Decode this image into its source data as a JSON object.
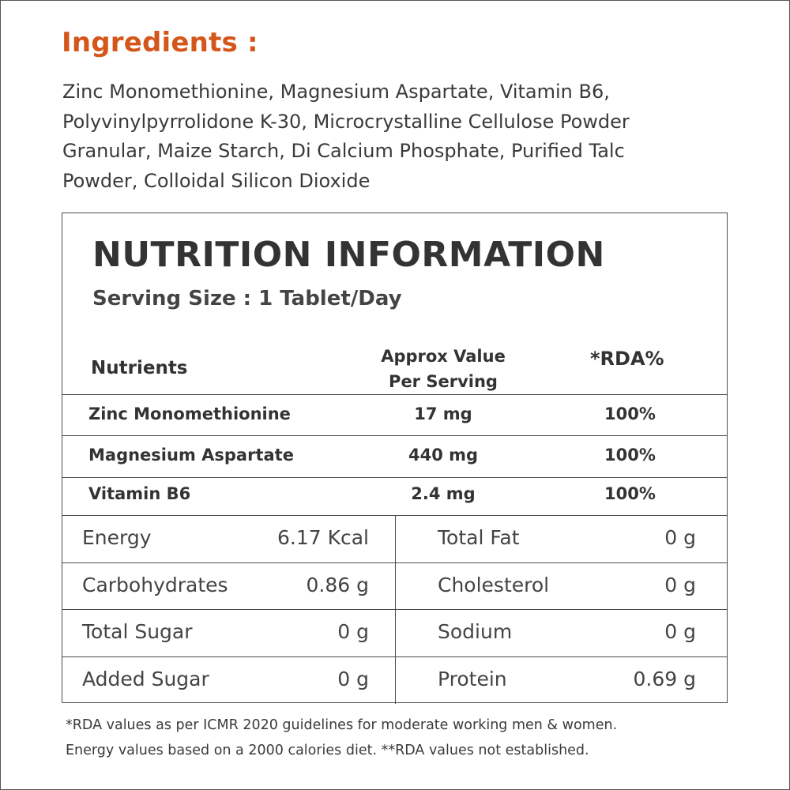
{
  "ingredients": {
    "title": "Ingredients :",
    "lines": [
      "Zinc Monomethionine, Magnesium Aspartate, Vitamin B6,",
      "Polyvinylpyrrolidone K-30, Microcrystalline Cellulose Powder",
      "Granular, Maize Starch, Di Calcium Phosphate, Purified Talc",
      "Powder, Colloidal Silicon Dioxide"
    ]
  },
  "nutrition": {
    "title": "NUTRITION INFORMATION",
    "serving_size": "Serving Size : 1 Tablet/Day",
    "headers": {
      "nutrients": "Nutrients",
      "approx_line1": "Approx Value",
      "approx_line2": "Per Serving",
      "rda": "*RDA%"
    },
    "micronutrients": [
      {
        "name": "Zinc Monomethionine",
        "value": "17 mg",
        "rda": "100%"
      },
      {
        "name": "Magnesium Aspartate",
        "value": "440 mg",
        "rda": "100%"
      },
      {
        "name": "Vitamin B6",
        "value": "2.4 mg",
        "rda": "100%"
      }
    ],
    "general": [
      {
        "label1": "Energy",
        "value1": "6.17 Kcal",
        "label2": "Total Fat",
        "value2": "0 g"
      },
      {
        "label1": "Carbohydrates",
        "value1": "0.86 g",
        "label2": "Cholesterol",
        "value2": "0 g"
      },
      {
        "label1": "Total Sugar",
        "value1": "0 g",
        "label2": "Sodium",
        "value2": "0 g"
      },
      {
        "label1": "Added Sugar",
        "value1": "0 g",
        "label2": "Protein",
        "value2": "0.69 g"
      }
    ]
  },
  "footnote": {
    "line1": "*RDA values as per ICMR 2020 guidelines for moderate working men & women.",
    "line2": "Energy values based on a 2000 calories diet. **RDA values not established."
  },
  "colors": {
    "accent": "#d4561a",
    "text": "#333333",
    "border": "#4a4a4a"
  }
}
